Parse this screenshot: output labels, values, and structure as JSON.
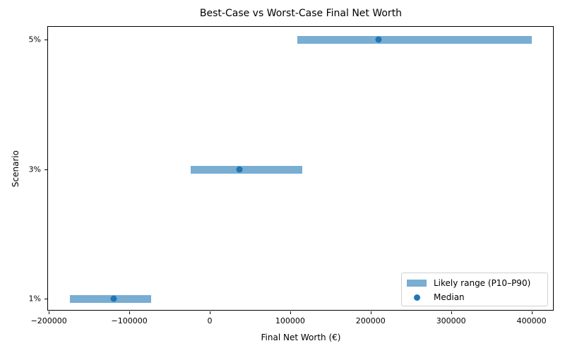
{
  "chart_data": {
    "type": "range-bar",
    "title": "Best-Case vs Worst-Case Final Net Worth",
    "xlabel": "Final Net Worth (€)",
    "ylabel": "Scenario",
    "xlim": [
      -205000,
      425000
    ],
    "xticks": [
      -200000,
      -100000,
      0,
      100000,
      200000,
      300000,
      400000
    ],
    "xtick_labels": [
      "−200000",
      "−100000",
      "0",
      "100000",
      "200000",
      "300000",
      "400000"
    ],
    "categories": [
      "1%",
      "3%",
      "5%"
    ],
    "series": [
      {
        "name": "Likely range (P10–P90)",
        "type": "range",
        "low": [
          -174000,
          -24000,
          109000
        ],
        "high": [
          -73000,
          115000,
          400000
        ]
      },
      {
        "name": "Median",
        "type": "scatter",
        "values": [
          -119000,
          37000,
          210000
        ]
      }
    ],
    "legend": {
      "position": "lower right",
      "entries": [
        "Likely range (P10–P90)",
        "Median"
      ]
    },
    "grid": false,
    "colors": {
      "range": "#1f77b4",
      "range_alpha": 0.6,
      "median": "#1f77b4"
    }
  }
}
